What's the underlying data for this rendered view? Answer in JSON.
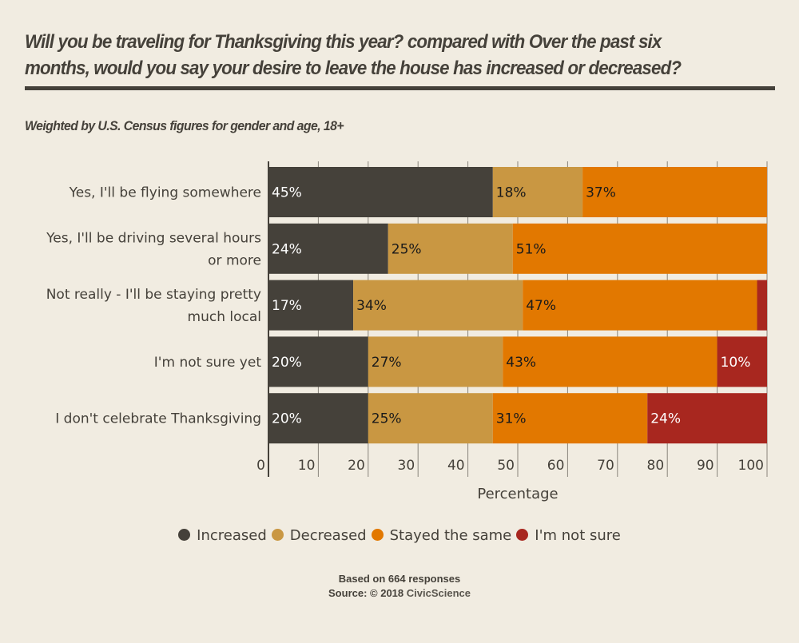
{
  "header": {
    "title": "Will you be traveling for Thanksgiving this year? compared with Over the past six months, would you say your desire to leave the house has increased or decreased?",
    "subtitle": "Weighted by U.S. Census figures for gender and age, 18+"
  },
  "chart_data": {
    "type": "bar",
    "orientation": "horizontal",
    "stacked": true,
    "title": "Will you be traveling for Thanksgiving this year? compared with Over the past six months, would you say your desire to leave the house has increased or decreased?",
    "subtitle": "Weighted by U.S. Census figures for gender and age, 18+",
    "xlabel": "Percentage",
    "ylabel": "",
    "xlim": [
      0,
      100
    ],
    "xticks": [
      0,
      10,
      20,
      30,
      40,
      50,
      60,
      70,
      80,
      90,
      100
    ],
    "grid": true,
    "legend_position": "bottom",
    "categories": [
      "Yes, I'll be flying somewhere",
      "Yes, I'll be driving several hours or more",
      "Not really - I'll be staying pretty much local",
      "I'm not sure yet",
      "I don't celebrate Thanksgiving"
    ],
    "category_lines": [
      [
        "Yes, I'll be flying somewhere"
      ],
      [
        "Yes, I'll be driving several hours",
        "or more"
      ],
      [
        "Not really - I'll be staying pretty",
        "much local"
      ],
      [
        "I'm not sure yet"
      ],
      [
        "I don't celebrate Thanksgiving"
      ]
    ],
    "series": [
      {
        "name": "Increased",
        "color": "#45413a",
        "label_color": "#ffffff",
        "values": [
          45,
          24,
          17,
          20,
          20
        ]
      },
      {
        "name": "Decreased",
        "color": "#c99742",
        "label_color": "#1a1a1a",
        "values": [
          18,
          25,
          34,
          27,
          25
        ]
      },
      {
        "name": "Stayed the same",
        "color": "#e27800",
        "label_color": "#1a1a1a",
        "values": [
          37,
          51,
          47,
          43,
          31
        ]
      },
      {
        "name": "I'm not sure",
        "color": "#a8271f",
        "label_color": "#ffffff",
        "values": [
          0,
          0,
          2,
          10,
          24
        ]
      }
    ],
    "label_min_value": 5
  },
  "footer": {
    "responses": "Based on 664 responses",
    "source_prefix": "Source: © 2018 ",
    "source_brand": "CivicScience"
  }
}
